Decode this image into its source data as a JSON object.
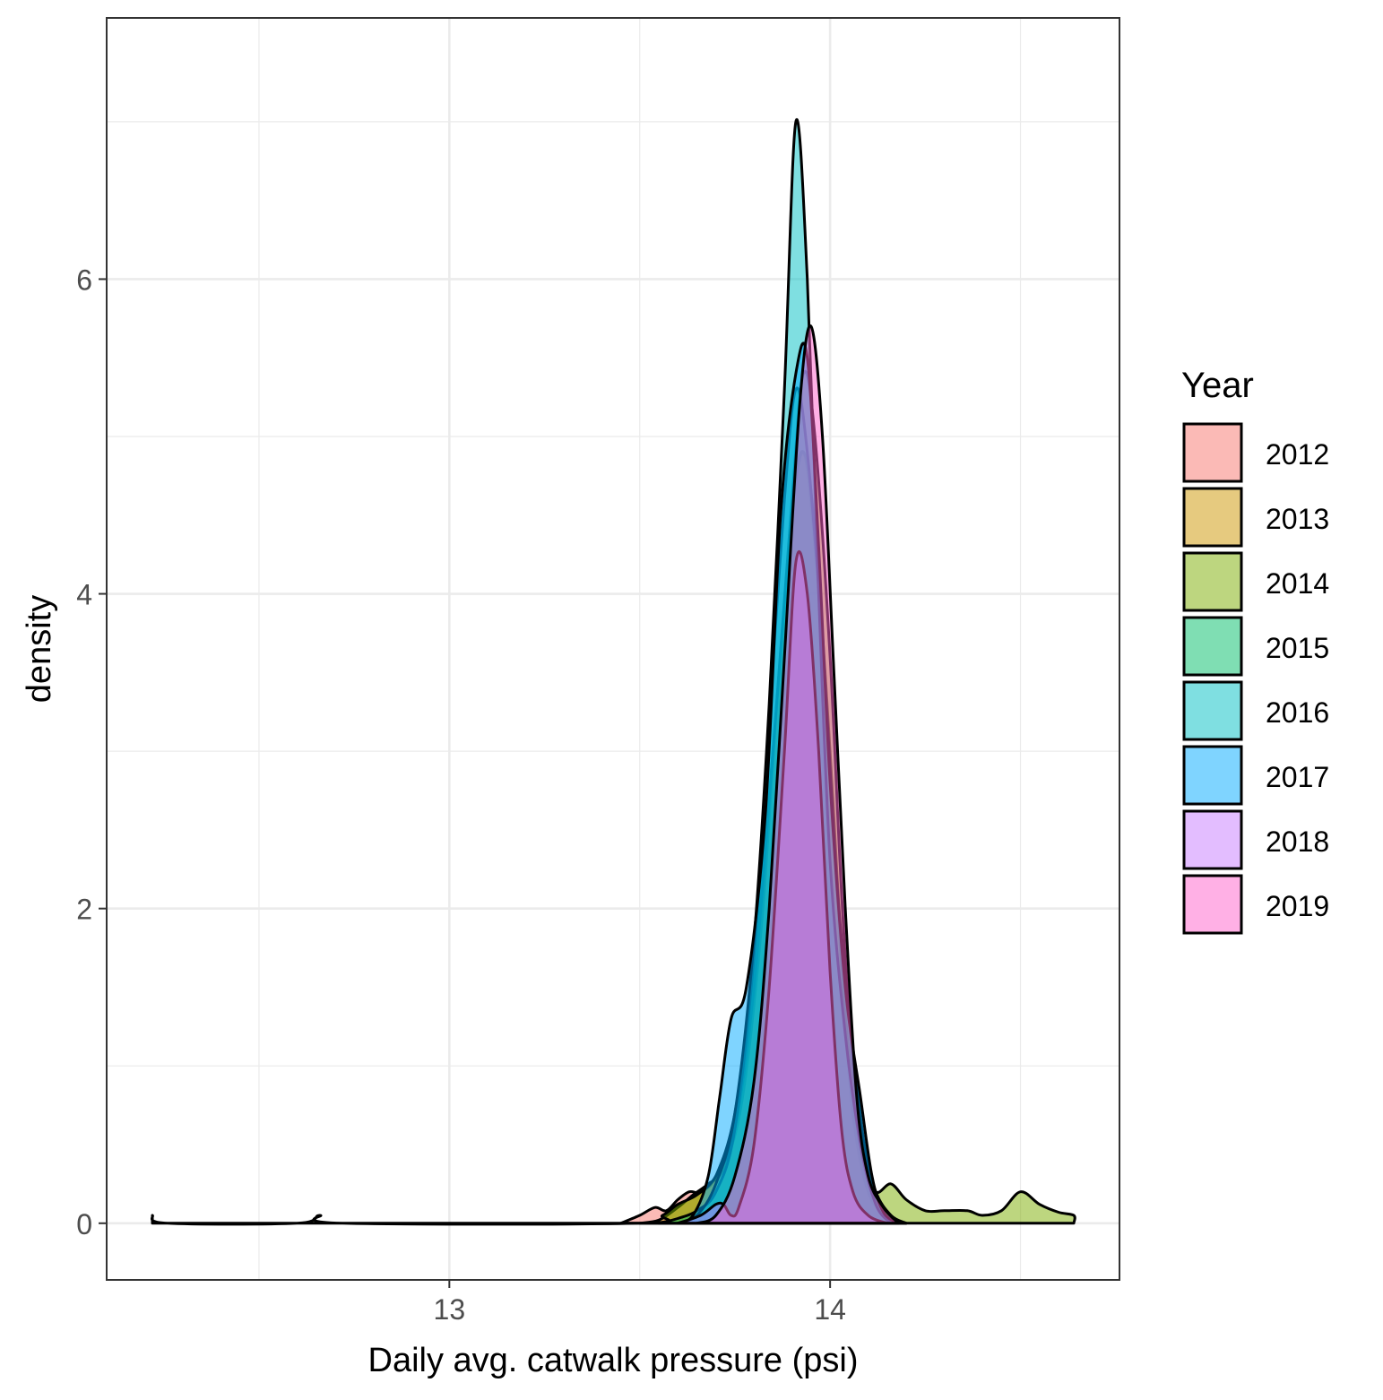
{
  "chart_data": {
    "type": "area",
    "subtype": "density",
    "xlabel": "Daily avg. catwalk pressure (psi)",
    "ylabel": "density",
    "xlim": [
      12.1,
      14.76
    ],
    "ylim": [
      -0.36,
      7.66
    ],
    "x_ticks": [
      13,
      14
    ],
    "x_minor_ticks": [
      12.5,
      13.5,
      14.5
    ],
    "y_ticks": [
      0,
      2,
      4,
      6
    ],
    "y_minor_ticks": [
      1,
      3,
      5,
      7
    ],
    "grid": true,
    "theme": "bw",
    "fill_opacity": 0.5,
    "legend": {
      "title": "Year",
      "position": "right"
    },
    "series": [
      {
        "name": "2012",
        "color": "#F8766D",
        "points": [
          [
            13.45,
            0
          ],
          [
            13.5,
            0.05
          ],
          [
            13.54,
            0.1
          ],
          [
            13.57,
            0.08
          ],
          [
            13.6,
            0.15
          ],
          [
            13.63,
            0.2
          ],
          [
            13.66,
            0.2
          ],
          [
            13.7,
            0.3
          ],
          [
            13.75,
            0.7
          ],
          [
            13.8,
            1.6
          ],
          [
            13.85,
            3.0
          ],
          [
            13.9,
            4.5
          ],
          [
            13.93,
            4.9
          ],
          [
            13.96,
            4.3
          ],
          [
            14.0,
            2.9
          ],
          [
            14.03,
            1.6
          ],
          [
            14.06,
            0.7
          ],
          [
            14.1,
            0.2
          ],
          [
            14.15,
            0.05
          ],
          [
            14.2,
            0
          ]
        ]
      },
      {
        "name": "2013",
        "color": "#CD9600",
        "points": [
          [
            13.5,
            0
          ],
          [
            13.55,
            0.02
          ],
          [
            13.6,
            0.1
          ],
          [
            13.64,
            0.18
          ],
          [
            13.68,
            0.25
          ],
          [
            13.72,
            0.35
          ],
          [
            13.77,
            0.8
          ],
          [
            13.82,
            1.9
          ],
          [
            13.86,
            3.3
          ],
          [
            13.9,
            4.5
          ],
          [
            13.93,
            4.9
          ],
          [
            13.96,
            4.4
          ],
          [
            14.0,
            3.0
          ],
          [
            14.03,
            1.7
          ],
          [
            14.06,
            0.8
          ],
          [
            14.1,
            0.25
          ],
          [
            14.15,
            0.05
          ],
          [
            14.2,
            0
          ]
        ]
      },
      {
        "name": "2014",
        "color": "#7CAE00",
        "points": [
          [
            12.22,
            0.05
          ],
          [
            12.26,
            0
          ],
          [
            12.6,
            0
          ],
          [
            12.66,
            0.05
          ],
          [
            12.72,
            0
          ],
          [
            13.5,
            0
          ],
          [
            13.56,
            0.05
          ],
          [
            13.6,
            0.12
          ],
          [
            13.65,
            0.18
          ],
          [
            13.7,
            0.3
          ],
          [
            13.75,
            0.6
          ],
          [
            13.8,
            1.5
          ],
          [
            13.85,
            3.0
          ],
          [
            13.9,
            4.6
          ],
          [
            13.93,
            5.4
          ],
          [
            13.96,
            5.0
          ],
          [
            14.0,
            3.6
          ],
          [
            14.03,
            2.1
          ],
          [
            14.06,
            1.0
          ],
          [
            14.09,
            0.4
          ],
          [
            14.12,
            0.2
          ],
          [
            14.16,
            0.25
          ],
          [
            14.2,
            0.15
          ],
          [
            14.25,
            0.08
          ],
          [
            14.3,
            0.08
          ],
          [
            14.36,
            0.08
          ],
          [
            14.4,
            0.05
          ],
          [
            14.45,
            0.08
          ],
          [
            14.5,
            0.2
          ],
          [
            14.55,
            0.12
          ],
          [
            14.6,
            0.07
          ],
          [
            14.64,
            0.05
          ],
          [
            14.64,
            0
          ]
        ]
      },
      {
        "name": "2015",
        "color": "#00BE67",
        "points": [
          [
            13.55,
            0
          ],
          [
            13.6,
            0.03
          ],
          [
            13.65,
            0.08
          ],
          [
            13.7,
            0.2
          ],
          [
            13.75,
            0.6
          ],
          [
            13.8,
            1.7
          ],
          [
            13.84,
            3.2
          ],
          [
            13.88,
            4.6
          ],
          [
            13.91,
            5.3
          ],
          [
            13.94,
            4.9
          ],
          [
            13.98,
            3.7
          ],
          [
            14.02,
            2.1
          ],
          [
            14.06,
            1.1
          ],
          [
            14.09,
            0.5
          ],
          [
            14.12,
            0.2
          ],
          [
            14.16,
            0.05
          ],
          [
            14.2,
            0
          ]
        ]
      },
      {
        "name": "2016",
        "color": "#00BFC4",
        "points": [
          [
            13.6,
            0
          ],
          [
            13.65,
            0.05
          ],
          [
            13.7,
            0.25
          ],
          [
            13.75,
            0.7
          ],
          [
            13.8,
            1.8
          ],
          [
            13.84,
            3.3
          ],
          [
            13.88,
            5.3
          ],
          [
            13.91,
            7.0
          ],
          [
            13.94,
            6.0
          ],
          [
            13.97,
            4.0
          ],
          [
            14.0,
            2.3
          ],
          [
            14.04,
            1.2
          ],
          [
            14.08,
            0.5
          ],
          [
            14.12,
            0.12
          ],
          [
            14.16,
            0
          ]
        ]
      },
      {
        "name": "2017",
        "color": "#00A9FF",
        "points": [
          [
            13.6,
            0
          ],
          [
            13.64,
            0.05
          ],
          [
            13.68,
            0.3
          ],
          [
            13.71,
            0.8
          ],
          [
            13.74,
            1.3
          ],
          [
            13.78,
            1.5
          ],
          [
            13.83,
            2.6
          ],
          [
            13.87,
            4.5
          ],
          [
            13.91,
            5.4
          ],
          [
            13.94,
            5.5
          ],
          [
            13.97,
            4.3
          ],
          [
            14.0,
            2.8
          ],
          [
            14.04,
            1.5
          ],
          [
            14.08,
            0.8
          ],
          [
            14.11,
            0.3
          ],
          [
            14.14,
            0.07
          ],
          [
            14.18,
            0
          ]
        ]
      },
      {
        "name": "2018",
        "color": "#C77CFF",
        "points": [
          [
            13.6,
            0
          ],
          [
            13.66,
            0.05
          ],
          [
            13.7,
            0.12
          ],
          [
            13.72,
            0.12
          ],
          [
            13.74,
            0.05
          ],
          [
            13.76,
            0.1
          ],
          [
            13.8,
            0.5
          ],
          [
            13.84,
            1.5
          ],
          [
            13.88,
            3.0
          ],
          [
            13.91,
            4.2
          ],
          [
            13.94,
            4.0
          ],
          [
            13.97,
            3.0
          ],
          [
            14.0,
            1.6
          ],
          [
            14.03,
            0.6
          ],
          [
            14.06,
            0.2
          ],
          [
            14.1,
            0.05
          ],
          [
            14.15,
            0
          ]
        ]
      },
      {
        "name": "2019",
        "color": "#FF61CC",
        "points": [
          [
            13.65,
            0
          ],
          [
            13.7,
            0.05
          ],
          [
            13.75,
            0.3
          ],
          [
            13.8,
            0.9
          ],
          [
            13.84,
            2.0
          ],
          [
            13.88,
            3.6
          ],
          [
            13.92,
            5.2
          ],
          [
            13.95,
            5.7
          ],
          [
            13.98,
            5.0
          ],
          [
            14.01,
            3.5
          ],
          [
            14.04,
            2.0
          ],
          [
            14.07,
            0.8
          ],
          [
            14.1,
            0.3
          ],
          [
            14.14,
            0.1
          ],
          [
            14.18,
            0
          ]
        ]
      }
    ]
  }
}
